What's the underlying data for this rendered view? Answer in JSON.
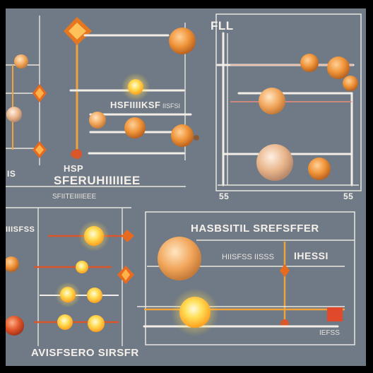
{
  "colors": {
    "background": "#707a86",
    "frame": "#000000",
    "rail": "#f2eee7",
    "orange": "#e8892c",
    "yellow": "#ffd43a",
    "redline": "#d9572a"
  },
  "panels": {
    "top_right": {
      "title": "FLL",
      "axis_left": "55",
      "axis_right": "55"
    },
    "top_left": {
      "caption_a": "HSP",
      "caption_b": "SFERUHIIIIIEE",
      "caption_c": "SFIITEIIIIEEE",
      "caption_side": "IS",
      "inline_label": "HSFIIIIKSF",
      "inline_label_b": "IISFSI"
    },
    "bottom_left": {
      "corner_label": "IIISFSS",
      "footer": "AVISFSERO SIRSFR"
    },
    "bottom_right": {
      "title": "HASBSITIL SREFSFFER",
      "subtitle": "HIISFSS IISSS",
      "inline_label": "IHESSI",
      "badge": "IEFSS"
    }
  },
  "icons": [
    "star-burst-icon",
    "diamond-marker-icon"
  ]
}
